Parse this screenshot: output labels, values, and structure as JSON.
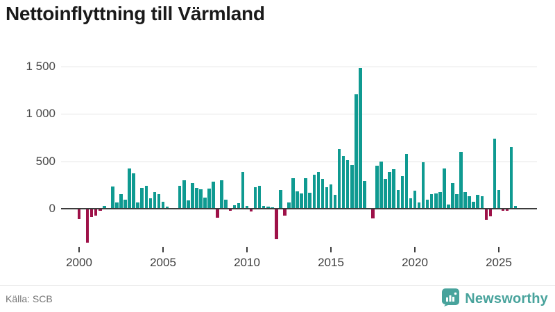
{
  "title": "Nettoinflyttning till Värmland",
  "source": "Källa: SCB",
  "brand": {
    "name": "Newsworthy",
    "color": "#48a39c"
  },
  "colors": {
    "positive": "#0f9a91",
    "negative": "#9e1148",
    "axis_line": "#3c3c3c",
    "gridline": "#e4e4e4",
    "axis_text": "#4a4a4a",
    "title_text": "#1a1a1a",
    "footer_text": "#767676"
  },
  "chart_data": {
    "type": "bar",
    "title": "Nettoinflyttning till Värmland",
    "xlabel": "",
    "ylabel": "",
    "frequency": "quarterly",
    "start_period": "2000Q1",
    "end_period": "2026Q1",
    "ylim": [
      -400,
      1550
    ],
    "grid": "horizontal",
    "legend_position": "none",
    "y_ticks": [
      0,
      500,
      1000,
      1500
    ],
    "y_tick_labels": [
      "0",
      "500",
      "1 000",
      "1 500"
    ],
    "x_tick_years": [
      2000,
      2005,
      2010,
      2015,
      2020,
      2025
    ],
    "x_tick_labels": [
      "2000",
      "2005",
      "2010",
      "2015",
      "2020",
      "2025"
    ],
    "values": [
      -110,
      0,
      -360,
      -85,
      -75,
      -20,
      32,
      0,
      231,
      68,
      153,
      97,
      421,
      372,
      68,
      219,
      241,
      110,
      178,
      153,
      73,
      22,
      10,
      0,
      238,
      299,
      90,
      270,
      216,
      202,
      114,
      209,
      284,
      -95,
      301,
      92,
      -22,
      34,
      61,
      391,
      32,
      -29,
      224,
      238,
      29,
      24,
      15,
      -320,
      199,
      -70,
      68,
      323,
      182,
      163,
      323,
      170,
      360,
      384,
      316,
      230,
      254,
      148,
      627,
      553,
      514,
      459,
      1205,
      1487,
      296,
      5,
      -104,
      454,
      496,
      311,
      390,
      420,
      200,
      343,
      578,
      106,
      187,
      64,
      492,
      98,
      157,
      162,
      175,
      426,
      44,
      271,
      155,
      603,
      177,
      134,
      75,
      146,
      130,
      -116,
      -79,
      738,
      197,
      -25,
      -20,
      650,
      30
    ]
  }
}
